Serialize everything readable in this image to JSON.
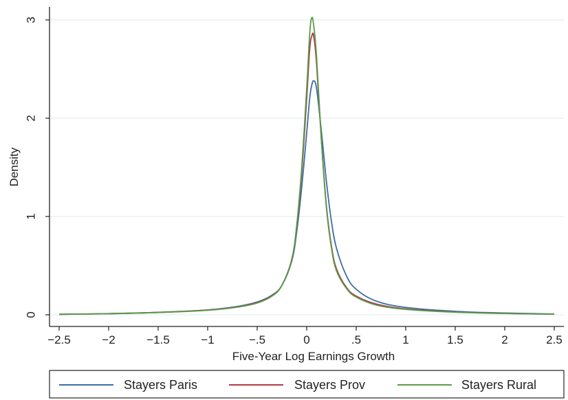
{
  "chart_data": {
    "type": "line",
    "title": "",
    "xlabel": "Five-Year Log Earnings Growth",
    "ylabel": "Density",
    "xlim": [
      -2.5,
      2.5
    ],
    "ylim": [
      0,
      3
    ],
    "x_ticks": [
      -2.5,
      -2,
      -1.5,
      -1,
      -0.5,
      0,
      0.5,
      1,
      1.5,
      2,
      2.5
    ],
    "x_tick_labels": [
      "−2.5",
      "−2",
      "−1.5",
      "−1",
      "−.5",
      "0",
      ".5",
      "1",
      "1.5",
      "2",
      "2.5"
    ],
    "y_ticks": [
      0,
      1,
      2,
      3
    ],
    "y_tick_labels": [
      "0",
      "1",
      "2",
      "3"
    ],
    "grid": "horizontal",
    "legend_position": "bottom",
    "x": [
      -2.5,
      -2.0,
      -1.5,
      -1.0,
      -0.7,
      -0.5,
      -0.35,
      -0.25,
      -0.15,
      -0.1,
      -0.05,
      0.0,
      0.03,
      0.05,
      0.07,
      0.1,
      0.15,
      0.2,
      0.25,
      0.3,
      0.4,
      0.5,
      0.7,
      1.0,
      1.5,
      2.0,
      2.5
    ],
    "series": [
      {
        "name": "Stayers Paris",
        "color": "#3a6ea5",
        "values": [
          0.005,
          0.012,
          0.025,
          0.05,
          0.085,
          0.13,
          0.2,
          0.3,
          0.55,
          0.85,
          1.3,
          1.85,
          2.2,
          2.33,
          2.38,
          2.3,
          1.85,
          1.35,
          0.95,
          0.68,
          0.4,
          0.26,
          0.14,
          0.075,
          0.035,
          0.018,
          0.008
        ]
      },
      {
        "name": "Stayers Prov",
        "color": "#b03a48",
        "values": [
          0.005,
          0.011,
          0.024,
          0.048,
          0.08,
          0.125,
          0.195,
          0.3,
          0.56,
          0.9,
          1.45,
          2.2,
          2.7,
          2.83,
          2.84,
          2.55,
          1.75,
          1.1,
          0.7,
          0.47,
          0.28,
          0.19,
          0.11,
          0.06,
          0.028,
          0.014,
          0.006
        ]
      },
      {
        "name": "Stayers Rural",
        "color": "#5a9a4a",
        "values": [
          0.005,
          0.011,
          0.023,
          0.046,
          0.078,
          0.12,
          0.19,
          0.3,
          0.57,
          0.92,
          1.5,
          2.3,
          2.85,
          3.02,
          2.95,
          2.62,
          1.75,
          1.08,
          0.68,
          0.45,
          0.27,
          0.18,
          0.1,
          0.055,
          0.026,
          0.013,
          0.006
        ]
      }
    ]
  }
}
